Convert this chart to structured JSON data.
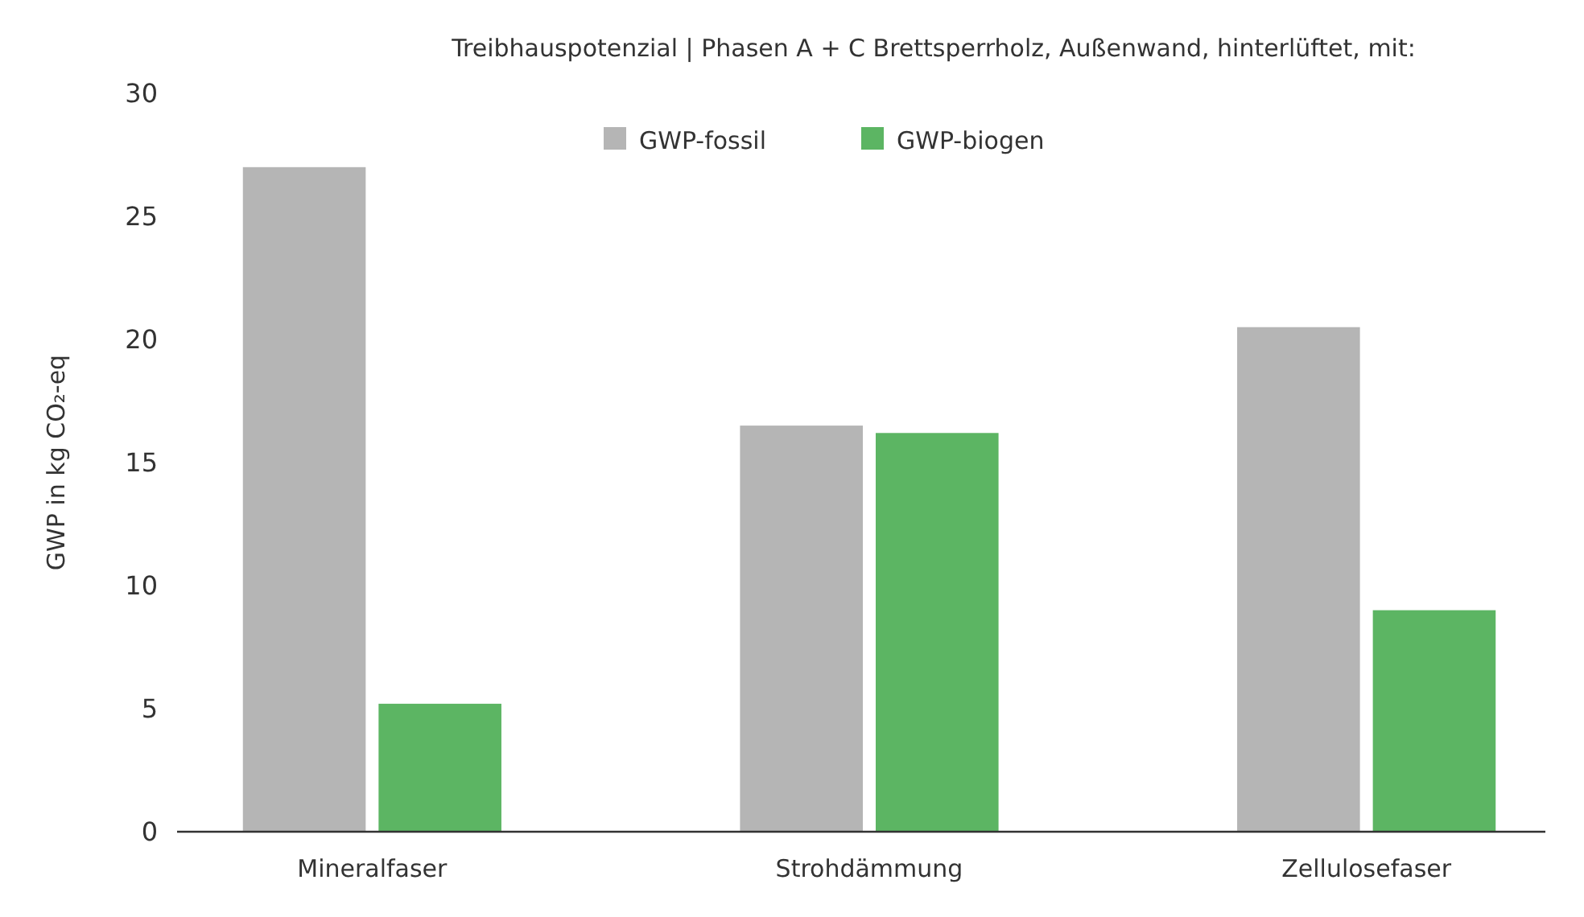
{
  "chart_data": {
    "type": "bar",
    "title": "Treibhauspotenzial | Phasen A + C Brettsperrholz, Außenwand, hinterlüftet, mit:",
    "ylabel": "GWP in kg CO₂-eq",
    "categories": [
      "Mineralfaser",
      "Strohdämmung",
      "Zellulosefaser"
    ],
    "series": [
      {
        "name": "GWP-fossil",
        "color": "#b5b5b5",
        "values": [
          27,
          16.5,
          20.5
        ]
      },
      {
        "name": "GWP-biogen",
        "color": "#5cb563",
        "values": [
          5.2,
          16.2,
          9
        ]
      }
    ],
    "ylim": [
      0,
      30
    ],
    "yticks": [
      0,
      5,
      10,
      15,
      20,
      25,
      30
    ],
    "grid": false,
    "legend": "top"
  }
}
